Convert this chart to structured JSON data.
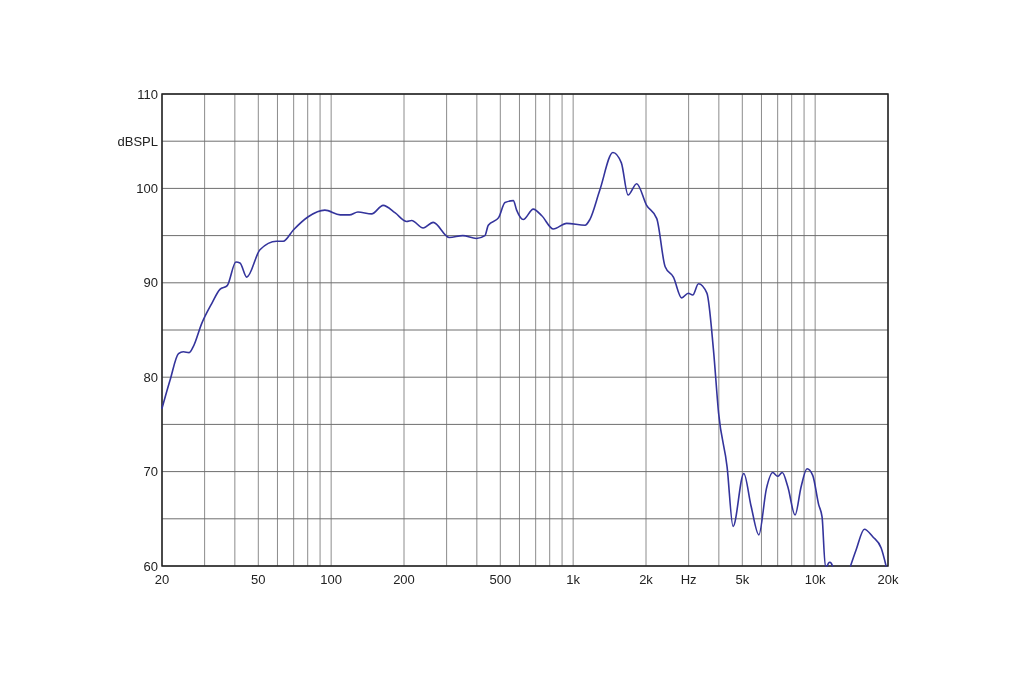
{
  "chart_data": {
    "type": "line",
    "log": "x",
    "grid": true,
    "line_style": "solid",
    "xlim": [
      20,
      20000
    ],
    "ylim": [
      60,
      110
    ],
    "xticks": [
      20,
      {
        "value": 30,
        "label": null
      },
      {
        "value": 40,
        "label": null
      },
      50,
      {
        "value": 60,
        "label": null
      },
      {
        "value": 70,
        "label": null
      },
      {
        "value": 80,
        "label": null
      },
      {
        "value": 90,
        "label": null
      },
      100,
      200,
      {
        "value": 300,
        "label": null
      },
      {
        "value": 400,
        "label": null
      },
      500,
      {
        "value": 600,
        "label": null
      },
      {
        "value": 700,
        "label": null
      },
      {
        "value": 800,
        "label": null
      },
      {
        "value": 900,
        "label": null
      },
      {
        "value": 1000,
        "label": "1k"
      },
      {
        "value": 2000,
        "label": "2k"
      },
      {
        "value": 3000,
        "label": "Hz"
      },
      {
        "value": 4000,
        "label": null
      },
      {
        "value": 5000,
        "label": "5k"
      },
      {
        "value": 6000,
        "label": null
      },
      {
        "value": 7000,
        "label": null
      },
      {
        "value": 8000,
        "label": null
      },
      {
        "value": 9000,
        "label": null
      },
      {
        "value": 10000,
        "label": "10k"
      },
      {
        "value": 20000,
        "label": "20k"
      }
    ],
    "yticks": [
      60,
      {
        "value": 65,
        "label": null
      },
      70,
      {
        "value": 75,
        "label": null
      },
      80,
      {
        "value": 85,
        "label": null
      },
      90,
      {
        "value": 95,
        "label": null
      },
      100,
      {
        "value": 105,
        "label": "dBSPL"
      },
      110
    ],
    "x": [
      20,
      21.6,
      23.4,
      24.5,
      25.9,
      26.9,
      29.2,
      32.1,
      34.7,
      37.2,
      40.4,
      42,
      44.8,
      50.8,
      59.5,
      63.4,
      69.8,
      80.4,
      94.2,
      109,
      119,
      129,
      147,
      164,
      184,
      205,
      215,
      240,
      264,
      308,
      350,
      398,
      432,
      446,
      492,
      523,
      566,
      584,
      622,
      684,
      742,
      828,
      940,
      1120,
      1172,
      1288,
      1460,
      1582,
      1686,
      1830,
      2012,
      2216,
      2400,
      2596,
      2808,
      2990,
      3120,
      3294,
      3570,
      3800,
      3990,
      4326,
      4580,
      5072,
      5440,
      5852,
      6290,
      6680,
      7000,
      7310,
      7710,
      8260,
      8750,
      9260,
      9772,
      10340,
      10680,
      11020,
      11200,
      11350,
      11500,
      11650,
      11800,
      12800,
      14000,
      14760,
      15980,
      17300,
      18740,
      19640
    ],
    "series": [
      {
        "color": "#34349c",
        "values": [
          76.7,
          79.7,
          82.5,
          82.7,
          82.6,
          83.2,
          85.7,
          87.8,
          89.3,
          89.7,
          92.2,
          92.1,
          90.6,
          93.5,
          94.4,
          94.4,
          95.6,
          97.0,
          97.7,
          97.2,
          97.2,
          97.5,
          97.3,
          98.2,
          97.4,
          96.5,
          96.6,
          95.8,
          96.4,
          94.8,
          95.0,
          94.7,
          95.0,
          96.1,
          96.9,
          98.5,
          98.7,
          97.7,
          96.7,
          97.8,
          97.1,
          95.7,
          96.3,
          96.1,
          96.7,
          99.8,
          103.8,
          102.7,
          99.3,
          100.5,
          98.2,
          96.8,
          91.7,
          90.6,
          88.4,
          88.9,
          88.7,
          89.9,
          88.9,
          82.9,
          76.2,
          70.5,
          64.2,
          69.8,
          66.3,
          63.3,
          68.2,
          69.9,
          69.5,
          69.9,
          68.4,
          65.4,
          68.4,
          70.3,
          69.6,
          66.5,
          65.2,
          60.0,
          60.0,
          60.3,
          60.4,
          60.3,
          60.0,
          null,
          60.0,
          61.7,
          63.9,
          63.1,
          61.9,
          60.0
        ]
      }
    ]
  }
}
